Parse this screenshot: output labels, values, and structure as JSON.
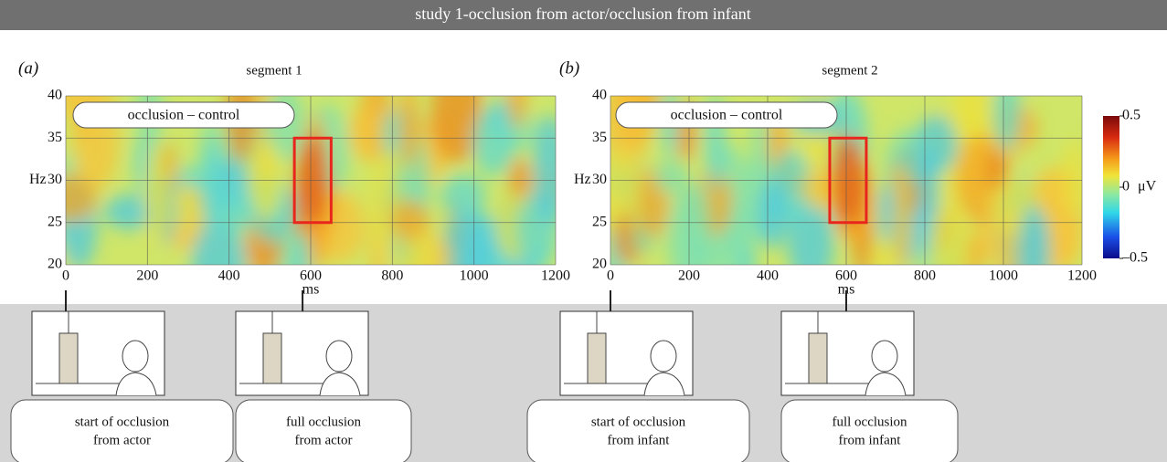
{
  "header": {
    "title": "study 1-occlusion from actor/occlusion from infant"
  },
  "chart_data": [
    {
      "type": "heatmap",
      "panel_label": "(a)",
      "title": "segment 1",
      "annotation": "occlusion – control",
      "x_label": "ms",
      "y_label": "Hz",
      "xlim": [
        0,
        1200
      ],
      "xticks": [
        0,
        200,
        400,
        600,
        800,
        1000,
        1200
      ],
      "ylim": [
        20,
        40
      ],
      "yticks": [
        20,
        25,
        30,
        35,
        40
      ],
      "grid": true,
      "highlight": {
        "x": [
          560,
          650
        ],
        "y": [
          25,
          35
        ],
        "color": "#e8261c"
      },
      "events": [
        {
          "time": 0,
          "caption": [
            "start of occlusion",
            "from actor"
          ]
        },
        {
          "time": 580,
          "caption": [
            "full occlusion",
            "from actor"
          ]
        }
      ]
    },
    {
      "type": "heatmap",
      "panel_label": "(b)",
      "title": "segment 2",
      "annotation": "occlusion – control",
      "x_label": "ms",
      "y_label": "Hz",
      "xlim": [
        0,
        1200
      ],
      "xticks": [
        0,
        200,
        400,
        600,
        800,
        1000,
        1200
      ],
      "ylim": [
        20,
        40
      ],
      "yticks": [
        20,
        25,
        30,
        35,
        40
      ],
      "grid": true,
      "highlight": {
        "x": [
          558,
          651
        ],
        "y": [
          25,
          35
        ],
        "color": "#e8261c"
      },
      "events": [
        {
          "time": 0,
          "caption": [
            "start of occlusion",
            "from infant"
          ]
        },
        {
          "time": 600,
          "caption": [
            "full occlusion",
            "from infant"
          ]
        }
      ],
      "colorbar": {
        "label": "μV",
        "lim": [
          -0.5,
          0.5
        ],
        "ticks": [
          0.5,
          0,
          {
            "value": -0.5,
            "label": "–0.5"
          }
        ]
      }
    }
  ]
}
